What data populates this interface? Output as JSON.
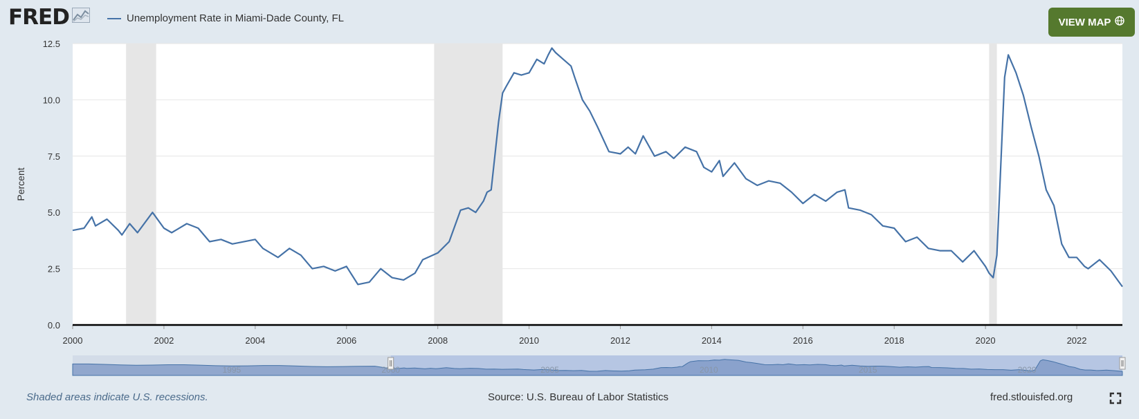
{
  "header": {
    "logo_text": "FRED",
    "series_title": "Unemployment Rate in Miami-Dade County, FL",
    "view_map_label": "VIEW MAP"
  },
  "footer": {
    "recession_note": "Shaded areas indicate U.S. recessions.",
    "source": "Source: U.S. Bureau of Labor Statistics",
    "url": "fred.stlouisfed.org"
  },
  "navigator": {
    "tick_labels": [
      "1995",
      "2000",
      "2005",
      "2010",
      "2015",
      "2020"
    ]
  },
  "colors": {
    "series": "#4572a7",
    "recession": "#e6e6e6",
    "button": "#55792e",
    "background": "#e1e9f0"
  },
  "chart_data": {
    "type": "line",
    "title": "Unemployment Rate in Miami-Dade County, FL",
    "xlabel": "",
    "ylabel": "Percent",
    "xlim": [
      2000.0,
      2023.0
    ],
    "ylim": [
      0,
      12.5
    ],
    "x_ticks": [
      "2000",
      "2002",
      "2004",
      "2006",
      "2008",
      "2010",
      "2012",
      "2014",
      "2016",
      "2018",
      "2020",
      "2022"
    ],
    "y_ticks": [
      "0.0",
      "2.5",
      "5.0",
      "7.5",
      "10.0",
      "12.5"
    ],
    "grid": "horizontal",
    "recessions": [
      [
        2001.17,
        2001.83
      ],
      [
        2007.92,
        2009.42
      ],
      [
        2020.08,
        2020.25
      ]
    ],
    "series": [
      {
        "name": "Unemployment Rate in Miami-Dade County, FL",
        "x": [
          2000.0,
          2000.25,
          2000.42,
          2000.5,
          2000.75,
          2001.0,
          2001.08,
          2001.25,
          2001.42,
          2001.75,
          2002.0,
          2002.17,
          2002.5,
          2002.75,
          2003.0,
          2003.25,
          2003.5,
          2004.0,
          2004.17,
          2004.5,
          2004.75,
          2005.0,
          2005.25,
          2005.5,
          2005.75,
          2006.0,
          2006.25,
          2006.5,
          2006.75,
          2007.0,
          2007.25,
          2007.5,
          2007.67,
          2008.0,
          2008.25,
          2008.5,
          2008.67,
          2008.83,
          2009.0,
          2009.08,
          2009.17,
          2009.33,
          2009.42,
          2009.5,
          2009.67,
          2009.83,
          2010.0,
          2010.17,
          2010.33,
          2010.42,
          2010.5,
          2010.58,
          2010.75,
          2010.92,
          2011.0,
          2011.17,
          2011.33,
          2011.5,
          2011.75,
          2012.0,
          2012.17,
          2012.33,
          2012.5,
          2012.75,
          2013.0,
          2013.17,
          2013.42,
          2013.67,
          2013.83,
          2014.0,
          2014.17,
          2014.25,
          2014.5,
          2014.75,
          2015.0,
          2015.25,
          2015.5,
          2015.75,
          2016.0,
          2016.25,
          2016.5,
          2016.75,
          2016.92,
          2017.0,
          2017.25,
          2017.5,
          2017.75,
          2018.0,
          2018.25,
          2018.5,
          2018.75,
          2019.0,
          2019.25,
          2019.5,
          2019.75,
          2020.0,
          2020.08,
          2020.17,
          2020.25,
          2020.42,
          2020.5,
          2020.67,
          2020.83,
          2021.0,
          2021.17,
          2021.33,
          2021.5,
          2021.67,
          2021.83,
          2022.0,
          2022.17,
          2022.25,
          2022.5,
          2022.75,
          2023.0
        ],
        "values": [
          4.2,
          4.3,
          4.8,
          4.4,
          4.7,
          4.2,
          4.0,
          4.5,
          4.1,
          5.0,
          4.3,
          4.1,
          4.5,
          4.3,
          3.7,
          3.8,
          3.6,
          3.8,
          3.4,
          3.0,
          3.4,
          3.1,
          2.5,
          2.6,
          2.4,
          2.6,
          1.8,
          1.9,
          2.5,
          2.1,
          2.0,
          2.3,
          2.9,
          3.2,
          3.7,
          5.1,
          5.2,
          5.0,
          5.5,
          5.9,
          6.0,
          9.0,
          10.3,
          10.6,
          11.2,
          11.1,
          11.2,
          11.8,
          11.6,
          12.0,
          12.3,
          12.1,
          11.8,
          11.5,
          11.0,
          10.0,
          9.5,
          8.8,
          7.7,
          7.6,
          7.9,
          7.6,
          8.4,
          7.5,
          7.7,
          7.4,
          7.9,
          7.7,
          7.0,
          6.8,
          7.3,
          6.6,
          7.2,
          6.5,
          6.2,
          6.4,
          6.3,
          5.9,
          5.4,
          5.8,
          5.5,
          5.9,
          6.0,
          5.2,
          5.1,
          4.9,
          4.4,
          4.3,
          3.7,
          3.9,
          3.4,
          3.3,
          3.3,
          2.8,
          3.3,
          2.6,
          2.3,
          2.1,
          3.1,
          11.0,
          12.0,
          11.2,
          10.2,
          8.8,
          7.5,
          6.0,
          5.3,
          3.6,
          3.0,
          3.0,
          2.6,
          2.5,
          2.9,
          2.4,
          1.7
        ]
      }
    ]
  }
}
